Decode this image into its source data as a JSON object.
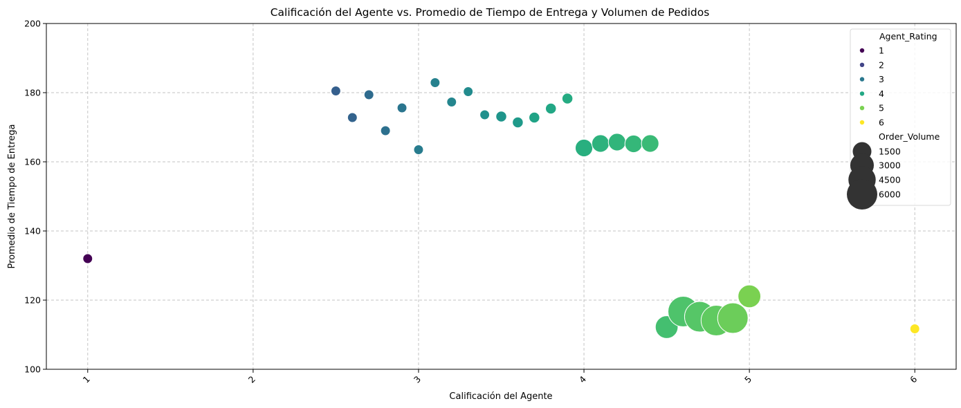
{
  "chart_data": {
    "type": "scatter",
    "title": "Calificación del Agente vs. Promedio de Tiempo de Entrega y Volumen de Pedidos",
    "xlabel": "Calificación del Agente",
    "ylabel": "Promedio de Tiempo de Entrega",
    "xlim": [
      0.75,
      6.25
    ],
    "ylim": [
      100,
      200
    ],
    "xticks": [
      "1",
      "2",
      "3",
      "4",
      "5",
      "6"
    ],
    "yticks": [
      "100",
      "120",
      "140",
      "160",
      "180",
      "200"
    ],
    "xtick_rotation": -45,
    "grid": true,
    "legend_placement": "top-right",
    "hue_legend": {
      "title": "Agent_Rating",
      "entries": [
        {
          "label": "1",
          "color": "#440154"
        },
        {
          "label": "2",
          "color": "#414487"
        },
        {
          "label": "3",
          "color": "#2a788e"
        },
        {
          "label": "4",
          "color": "#22a884"
        },
        {
          "label": "5",
          "color": "#7ad151"
        },
        {
          "label": "6",
          "color": "#fde725"
        }
      ]
    },
    "size_legend": {
      "title": "Order_Volume",
      "entries": [
        {
          "label": "1500",
          "value": 1500
        },
        {
          "label": "3000",
          "value": 3000
        },
        {
          "label": "4500",
          "value": 4500
        },
        {
          "label": "6000",
          "value": 6000
        }
      ]
    },
    "points": [
      {
        "x": 1.0,
        "y": 132.0,
        "volume": 80,
        "color": "#440154"
      },
      {
        "x": 2.5,
        "y": 180.5,
        "volume": 80,
        "color": "#355f8d"
      },
      {
        "x": 2.6,
        "y": 172.8,
        "volume": 80,
        "color": "#33638d"
      },
      {
        "x": 2.7,
        "y": 179.4,
        "volume": 80,
        "color": "#2f6b8e"
      },
      {
        "x": 2.8,
        "y": 169.0,
        "volume": 80,
        "color": "#2d708e"
      },
      {
        "x": 2.9,
        "y": 175.6,
        "volume": 80,
        "color": "#2a758e"
      },
      {
        "x": 3.0,
        "y": 163.5,
        "volume": 80,
        "color": "#287c8e"
      },
      {
        "x": 3.1,
        "y": 182.9,
        "volume": 80,
        "color": "#26818e"
      },
      {
        "x": 3.2,
        "y": 177.3,
        "volume": 80,
        "color": "#24868e"
      },
      {
        "x": 3.3,
        "y": 180.3,
        "volume": 80,
        "color": "#228b8d"
      },
      {
        "x": 3.4,
        "y": 173.6,
        "volume": 80,
        "color": "#21908d"
      },
      {
        "x": 3.5,
        "y": 173.1,
        "volume": 160,
        "color": "#1f958b"
      },
      {
        "x": 3.6,
        "y": 171.4,
        "volume": 160,
        "color": "#1f9a8a"
      },
      {
        "x": 3.7,
        "y": 172.8,
        "volume": 160,
        "color": "#20a386"
      },
      {
        "x": 3.8,
        "y": 175.4,
        "volume": 160,
        "color": "#22a785"
      },
      {
        "x": 3.9,
        "y": 178.3,
        "volume": 160,
        "color": "#25ab82"
      },
      {
        "x": 4.0,
        "y": 164.0,
        "volume": 1200,
        "color": "#29af7f"
      },
      {
        "x": 4.1,
        "y": 165.3,
        "volume": 1200,
        "color": "#2db27d"
      },
      {
        "x": 4.2,
        "y": 165.7,
        "volume": 1200,
        "color": "#31b57b"
      },
      {
        "x": 4.3,
        "y": 165.2,
        "volume": 1200,
        "color": "#35b779"
      },
      {
        "x": 4.4,
        "y": 165.3,
        "volume": 1200,
        "color": "#3aba76"
      },
      {
        "x": 4.5,
        "y": 112.2,
        "volume": 2700,
        "color": "#44bf70"
      },
      {
        "x": 4.6,
        "y": 116.7,
        "volume": 6000,
        "color": "#4ec36b"
      },
      {
        "x": 4.7,
        "y": 115.2,
        "volume": 6000,
        "color": "#56c667"
      },
      {
        "x": 4.8,
        "y": 114.1,
        "volume": 6000,
        "color": "#60ca60"
      },
      {
        "x": 4.9,
        "y": 114.8,
        "volume": 6000,
        "color": "#6ccd5a"
      },
      {
        "x": 5.0,
        "y": 121.1,
        "volume": 2700,
        "color": "#7ad151"
      },
      {
        "x": 6.0,
        "y": 111.7,
        "volume": 80,
        "color": "#fde725"
      }
    ]
  }
}
